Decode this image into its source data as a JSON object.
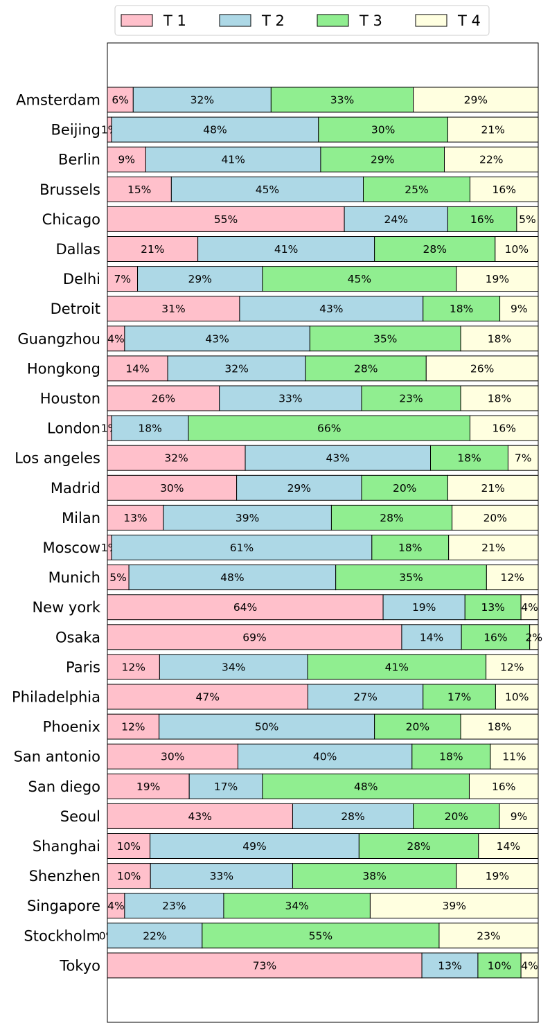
{
  "chart_data": {
    "type": "bar",
    "orientation": "horizontal",
    "stacked": true,
    "normalized_percent": true,
    "legend_position": "top-center",
    "categories": [
      "Amsterdam",
      "Beijing",
      "Berlin",
      "Brussels",
      "Chicago",
      "Dallas",
      "Delhi",
      "Detroit",
      "Guangzhou",
      "Hongkong",
      "Houston",
      "London",
      "Los angeles",
      "Madrid",
      "Milan",
      "Moscow",
      "Munich",
      "New york",
      "Osaka",
      "Paris",
      "Philadelphia",
      "Phoenix",
      "San antonio",
      "San diego",
      "Seoul",
      "Shanghai",
      "Shenzhen",
      "Singapore",
      "Stockholm",
      "Tokyo"
    ],
    "series": [
      {
        "name": "T 1",
        "color": "#ffc0cb",
        "values": [
          6,
          1,
          9,
          15,
          55,
          21,
          7,
          31,
          4,
          14,
          26,
          1,
          32,
          30,
          13,
          1,
          5,
          64,
          69,
          12,
          47,
          12,
          30,
          19,
          43,
          10,
          10,
          4,
          0,
          73
        ]
      },
      {
        "name": "T 2",
        "color": "#add8e6",
        "values": [
          32,
          48,
          41,
          45,
          24,
          41,
          29,
          43,
          43,
          32,
          33,
          18,
          43,
          29,
          39,
          61,
          48,
          19,
          14,
          34,
          27,
          50,
          40,
          17,
          28,
          49,
          33,
          23,
          22,
          13
        ]
      },
      {
        "name": "T 3",
        "color": "#90ee90",
        "values": [
          33,
          30,
          29,
          25,
          16,
          28,
          45,
          18,
          35,
          28,
          23,
          66,
          18,
          20,
          28,
          18,
          35,
          13,
          16,
          41,
          17,
          20,
          18,
          48,
          20,
          28,
          38,
          34,
          55,
          10
        ]
      },
      {
        "name": "T 4",
        "color": "#ffffe0",
        "values": [
          29,
          21,
          22,
          16,
          5,
          10,
          19,
          9,
          18,
          26,
          18,
          16,
          7,
          21,
          20,
          21,
          12,
          4,
          2,
          12,
          10,
          18,
          11,
          16,
          9,
          14,
          19,
          39,
          23,
          4
        ]
      }
    ],
    "value_suffix": "%",
    "xlim": [
      0,
      100
    ],
    "grid": false
  }
}
